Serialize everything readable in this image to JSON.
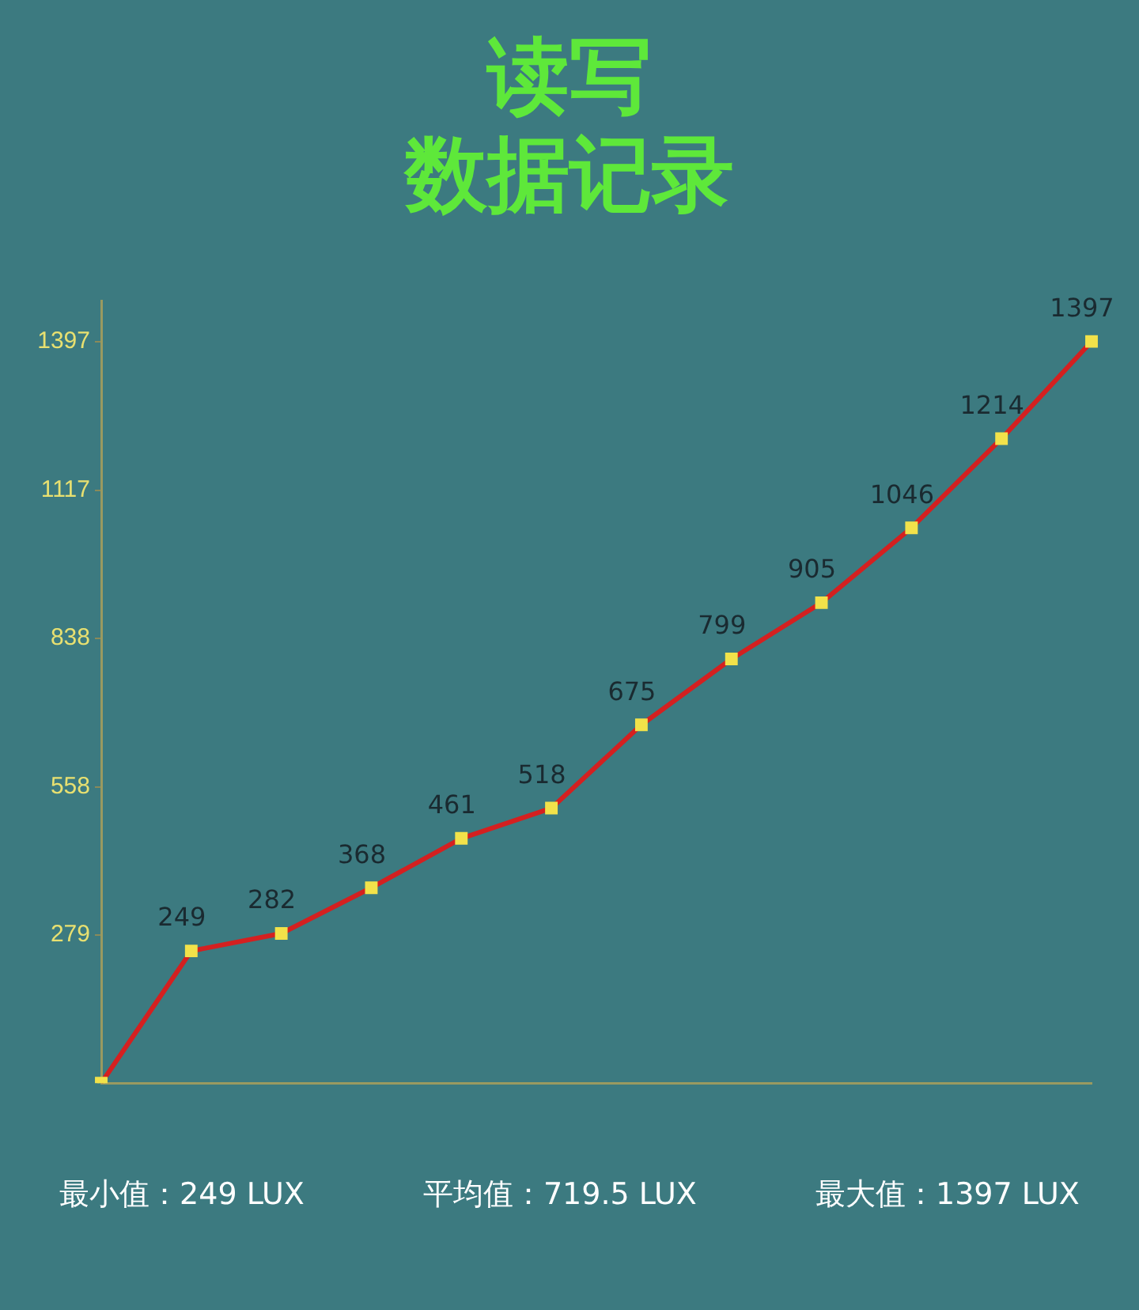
{
  "chart_data": {
    "type": "line",
    "title": "读写",
    "subtitle": "数据记录",
    "categories": [
      null,
      null,
      null,
      null,
      null,
      null,
      null,
      null,
      null,
      null,
      null,
      null
    ],
    "series": [
      {
        "color": "#d42020",
        "values": [
          0,
          249,
          282,
          368,
          461,
          518,
          675,
          799,
          905,
          1046,
          1214,
          1397
        ],
        "value_labels": [
          null,
          "249",
          "282",
          "368",
          "461",
          "518",
          "675",
          "799",
          "905",
          "1046",
          "1214",
          "1397"
        ]
      }
    ],
    "ylim": [
      0,
      1474
    ],
    "yticks": [
      279,
      558,
      838,
      1117,
      1397
    ],
    "grid": false,
    "legend": false,
    "marker": "square",
    "line_style": "solid",
    "annotations": [
      "最小值：249 LUX",
      "平均值：719.5 LUX",
      "最大值：1397 LUX"
    ]
  }
}
